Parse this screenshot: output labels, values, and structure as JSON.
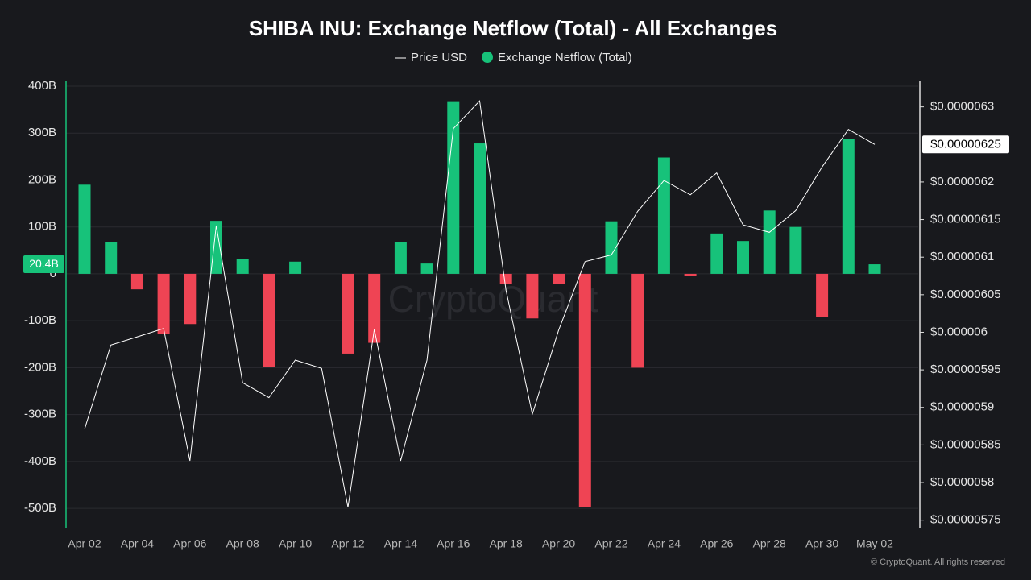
{
  "chart_data": {
    "type": "bar",
    "title": "SHIBA INU: Exchange Netflow (Total) - All Exchanges",
    "watermark": "CryptoQuant",
    "footer": "© CryptoQuant. All rights reserved",
    "categories": [
      "Apr 02",
      null,
      "Apr 04",
      null,
      "Apr 06",
      null,
      "Apr 08",
      null,
      "Apr 10",
      null,
      "Apr 12",
      null,
      "Apr 14",
      null,
      "Apr 16",
      null,
      "Apr 18",
      null,
      "Apr 20",
      null,
      "Apr 22",
      null,
      "Apr 24",
      null,
      "Apr 26",
      null,
      "Apr 28",
      null,
      "Apr 30",
      null,
      "May 02"
    ],
    "series": [
      {
        "name": "Exchange Netflow (Total)",
        "type": "bar",
        "color": "#17c27a",
        "negative_color": "#ef4454",
        "axis": "y",
        "values": [
          190000000000.0,
          68000000000.0,
          -33000000000.0,
          -128000000000.0,
          -107000000000.0,
          113000000000.0,
          32000000000.0,
          -198000000000.0,
          26000000000.0,
          0,
          -170000000000.0,
          -147000000000.0,
          68000000000.0,
          22000000000.0,
          368000000000.0,
          278000000000.0,
          -22000000000.0,
          -95000000000.0,
          -22000000000.0,
          -497000000000.0,
          112000000000.0,
          -200000000000.0,
          248000000000.0,
          -5000000000.0,
          86000000000.0,
          70000000000.0,
          135000000000.0,
          100000000000.0,
          -92000000000.0,
          288000000000.0,
          20400000000.0
        ],
        "last_label": "20.4B"
      },
      {
        "name": "Price USD",
        "type": "line",
        "color": "#ffffff",
        "axis": "y2",
        "values": [
          5.871e-06,
          5.983e-06,
          5.994e-06,
          6.005e-06,
          5.829e-06,
          6.142e-06,
          5.933e-06,
          5.913e-06,
          5.963e-06,
          5.952e-06,
          5.767e-06,
          6.004e-06,
          5.829e-06,
          5.963e-06,
          6.271e-06,
          6.308e-06,
          6.056e-06,
          5.891e-06,
          6.003e-06,
          6.094e-06,
          6.103e-06,
          6.161e-06,
          6.202e-06,
          6.183e-06,
          6.212e-06,
          6.143e-06,
          6.133e-06,
          6.162e-06,
          6.22e-06,
          6.27e-06,
          6.25e-06
        ],
        "last_label": "$0.00000625"
      }
    ],
    "ylim": [
      -541000000000.0,
      412000000000.0
    ],
    "yticks": [
      {
        "value": -500000000000.0,
        "label": "-500B"
      },
      {
        "value": -400000000000.0,
        "label": "-400B"
      },
      {
        "value": -300000000000.0,
        "label": "-300B"
      },
      {
        "value": -200000000000.0,
        "label": "-200B"
      },
      {
        "value": -100000000000.0,
        "label": "-100B"
      },
      0,
      {
        "value": 100000000000.0,
        "label": "100B"
      },
      {
        "value": 200000000000.0,
        "label": "200B"
      },
      {
        "value": 300000000000.0,
        "label": "300B"
      },
      {
        "value": 400000000000.0,
        "label": "400B"
      }
    ],
    "y2lim": [
      5.74e-06,
      6.335e-06
    ],
    "y2ticks": [
      {
        "value": 5.75e-06,
        "label": "$0.00000575"
      },
      {
        "value": 5.8e-06,
        "label": "$0.0000058"
      },
      {
        "value": 5.85e-06,
        "label": "$0.00000585"
      },
      {
        "value": 5.9e-06,
        "label": "$0.0000059"
      },
      {
        "value": 5.95e-06,
        "label": "$0.00000595"
      },
      {
        "value": 6e-06,
        "label": "$0.000006"
      },
      {
        "value": 6.05e-06,
        "label": "$0.00000605"
      },
      {
        "value": 6.1e-06,
        "label": "$0.0000061"
      },
      {
        "value": 6.15e-06,
        "label": "$0.00000615"
      },
      {
        "value": 6.2e-06,
        "label": "$0.0000062"
      },
      {
        "value": 6.3e-06,
        "label": "$0.0000063"
      }
    ],
    "grid": true,
    "legend": "top"
  }
}
